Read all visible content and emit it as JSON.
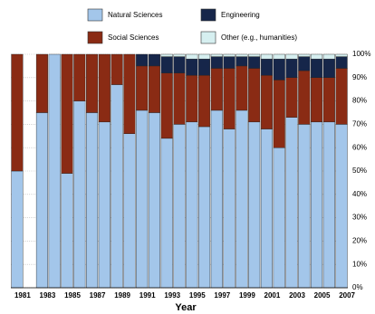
{
  "chart_data": {
    "type": "stacked-bar",
    "x_label": "Year",
    "categories": [
      "1981",
      null,
      "1983",
      null,
      "1985",
      null,
      "1987",
      null,
      "1989",
      null,
      "1991",
      null,
      "1993",
      null,
      "1995",
      null,
      "1997",
      null,
      "1999",
      null,
      "2001",
      null,
      "2003",
      null,
      "2005",
      null,
      "2007"
    ],
    "series": [
      {
        "name": "Natural Sciences",
        "color": "#a3c6ea",
        "values": [
          50,
          null,
          75,
          100,
          49,
          80,
          75,
          71,
          87,
          66,
          76,
          75,
          64,
          70,
          71,
          69,
          76,
          68,
          76,
          71,
          68,
          60,
          73,
          70,
          71,
          71,
          70
        ]
      },
      {
        "name": "Social Sciences",
        "color": "#8a2b14",
        "values": [
          50,
          null,
          25,
          0,
          51,
          20,
          25,
          29,
          13,
          34,
          19,
          20,
          28,
          22,
          20,
          22,
          18,
          26,
          19,
          23,
          23,
          29,
          17,
          23,
          19,
          19,
          24
        ]
      },
      {
        "name": "Engineering",
        "color": "#16264a",
        "values": [
          0,
          null,
          0,
          0,
          0,
          0,
          0,
          0,
          0,
          0,
          5,
          5,
          7,
          7,
          7,
          7,
          5,
          5,
          4,
          5,
          7,
          9,
          8,
          6,
          8,
          8,
          5
        ]
      },
      {
        "name": "Other (e.g., humanities)",
        "color": "#d6eff0",
        "values": [
          0,
          null,
          0,
          0,
          0,
          0,
          0,
          0,
          0,
          0,
          0,
          0,
          1,
          1,
          2,
          2,
          1,
          1,
          1,
          1,
          2,
          2,
          2,
          1,
          2,
          2,
          1
        ]
      }
    ],
    "ylim": [
      0,
      100
    ],
    "yticks": [
      {
        "value": 0,
        "label": "0%"
      },
      {
        "value": 10,
        "label": "10%"
      },
      {
        "value": 20,
        "label": "20%"
      },
      {
        "value": 30,
        "label": "30%"
      },
      {
        "value": 40,
        "label": "40%"
      },
      {
        "value": 50,
        "label": "50%"
      },
      {
        "value": 60,
        "label": "60%"
      },
      {
        "value": 70,
        "label": "70%"
      },
      {
        "value": 80,
        "label": "80%"
      },
      {
        "value": 90,
        "label": "90%"
      },
      {
        "value": 100,
        "label": "100%"
      }
    ],
    "grid": true
  }
}
